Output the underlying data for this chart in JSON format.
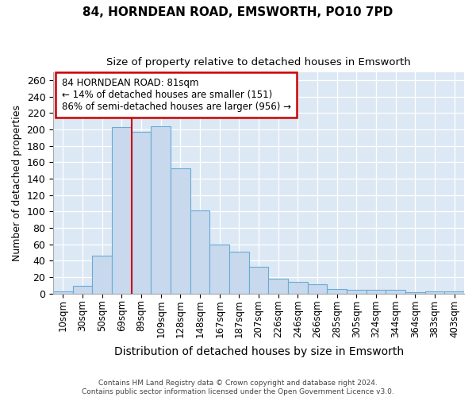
{
  "title": "84, HORNDEAN ROAD, EMSWORTH, PO10 7PD",
  "subtitle": "Size of property relative to detached houses in Emsworth",
  "xlabel": "Distribution of detached houses by size in Emsworth",
  "ylabel": "Number of detached properties",
  "bar_color": "#c8d9ee",
  "bar_edge_color": "#6aaad4",
  "plot_bg_color": "#dce9f5",
  "fig_bg_color": "#ffffff",
  "grid_color": "#ffffff",
  "categories": [
    "10sqm",
    "30sqm",
    "50sqm",
    "69sqm",
    "89sqm",
    "109sqm",
    "128sqm",
    "148sqm",
    "167sqm",
    "187sqm",
    "207sqm",
    "226sqm",
    "246sqm",
    "266sqm",
    "285sqm",
    "305sqm",
    "324sqm",
    "344sqm",
    "364sqm",
    "383sqm",
    "403sqm"
  ],
  "values": [
    3,
    9,
    46,
    203,
    197,
    204,
    153,
    101,
    60,
    51,
    33,
    18,
    14,
    11,
    5,
    4,
    4,
    4,
    2,
    3,
    3
  ],
  "ylim": [
    0,
    270
  ],
  "yticks": [
    0,
    20,
    40,
    60,
    80,
    100,
    120,
    140,
    160,
    180,
    200,
    220,
    240,
    260
  ],
  "vline_color": "#cc0000",
  "vline_x": 3.5,
  "annotation_text": "84 HORNDEAN ROAD: 81sqm\n← 14% of detached houses are smaller (151)\n86% of semi-detached houses are larger (956) →",
  "annotation_box_facecolor": "#ffffff",
  "annotation_box_edgecolor": "#cc0000",
  "footer_line1": "Contains HM Land Registry data © Crown copyright and database right 2024.",
  "footer_line2": "Contains public sector information licensed under the Open Government Licence v3.0."
}
